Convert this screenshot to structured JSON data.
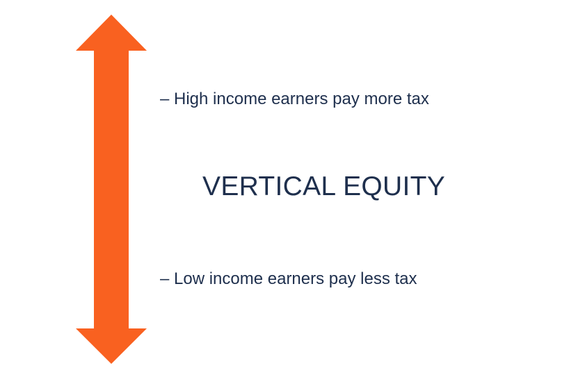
{
  "diagram": {
    "arrow_color": "#f96120",
    "text_color": "#1e2f4d",
    "top_label": "– High income earners pay more tax",
    "title": "VERTICAL EQUITY",
    "bottom_label": "– Low income earners pay less tax"
  }
}
